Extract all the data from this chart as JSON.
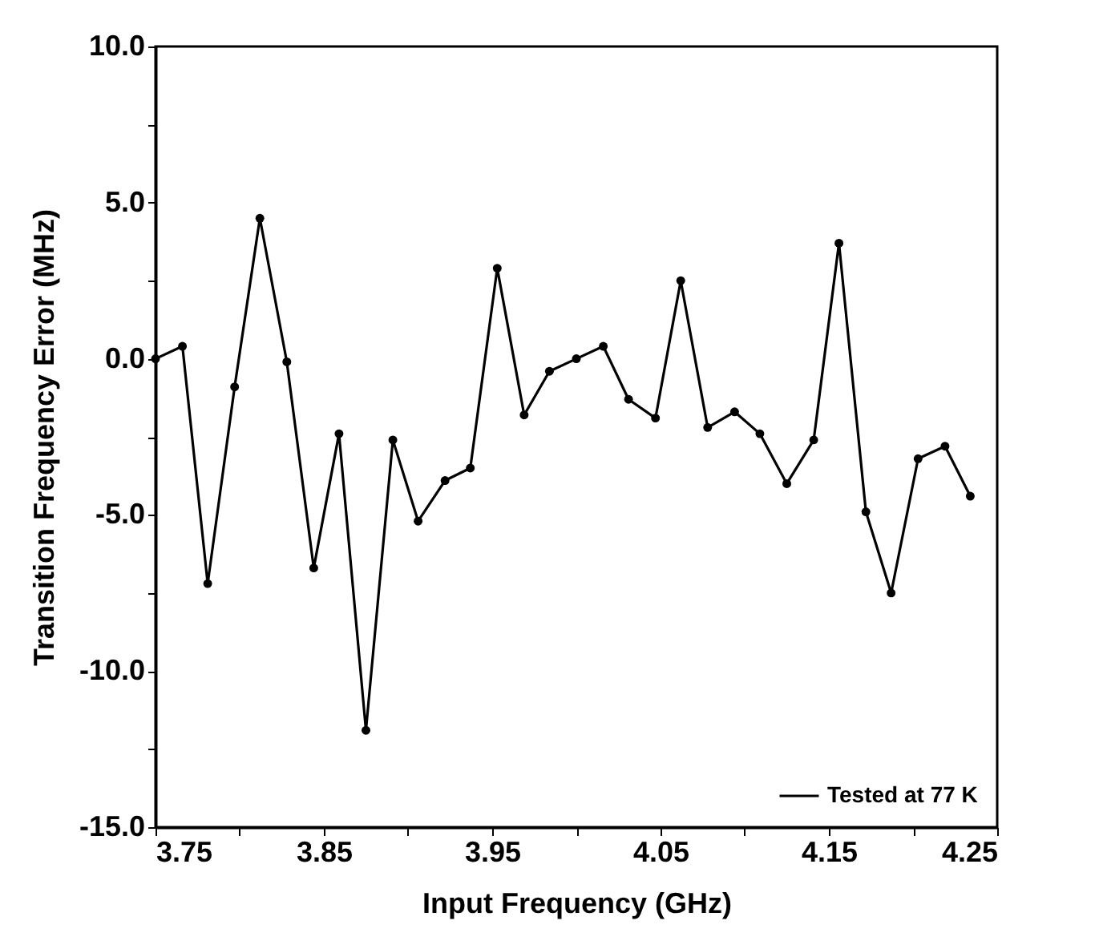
{
  "chart_data": {
    "type": "line",
    "xlabel": "Input Frequency (GHz)",
    "ylabel": "Transition Frequency Error (MHz)",
    "x": [
      3.75,
      3.766,
      3.781,
      3.797,
      3.812,
      3.828,
      3.844,
      3.859,
      3.875,
      3.891,
      3.906,
      3.922,
      3.937,
      3.953,
      3.969,
      3.984,
      4.0,
      4.016,
      4.031,
      4.047,
      4.062,
      4.078,
      4.094,
      4.109,
      4.125,
      4.141,
      4.156,
      4.172,
      4.187,
      4.203,
      4.219,
      4.234
    ],
    "series": [
      {
        "name": "Tested at 77 K",
        "color": "#000000",
        "values": [
          0.0,
          0.4,
          -7.2,
          -0.9,
          4.5,
          -0.1,
          -6.7,
          -2.4,
          -11.9,
          -2.6,
          -5.2,
          -3.9,
          -3.5,
          2.9,
          -1.8,
          -0.4,
          0.0,
          0.4,
          -1.3,
          -1.9,
          2.5,
          -2.2,
          -1.7,
          -2.4,
          -4.0,
          -2.6,
          3.7,
          -4.9,
          -7.5,
          -3.2,
          -2.8,
          -4.4
        ]
      }
    ],
    "xlim": [
      3.75,
      4.25
    ],
    "xticks": [
      {
        "value": 3.75,
        "label": "3.75"
      },
      {
        "value": 3.8,
        "label": null
      },
      {
        "value": 3.85,
        "label": "3.85"
      },
      {
        "value": 3.9,
        "label": null
      },
      {
        "value": 3.95,
        "label": "3.95"
      },
      {
        "value": 4.0,
        "label": null
      },
      {
        "value": 4.05,
        "label": "4.05"
      },
      {
        "value": 4.1,
        "label": null
      },
      {
        "value": 4.15,
        "label": "4.15"
      },
      {
        "value": 4.2,
        "label": null
      },
      {
        "value": 4.25,
        "label": "4.25"
      }
    ],
    "ylim": [
      -15,
      10
    ],
    "yticks": [
      {
        "value": -15,
        "label": "-15.0"
      },
      {
        "value": -12.5,
        "label": null
      },
      {
        "value": -10,
        "label": "-10.0"
      },
      {
        "value": -7.5,
        "label": null
      },
      {
        "value": -5,
        "label": "-5.0"
      },
      {
        "value": -2.5,
        "label": null
      },
      {
        "value": 0,
        "label": "0.0"
      },
      {
        "value": 2.5,
        "label": null
      },
      {
        "value": 5,
        "label": "5.0"
      },
      {
        "value": 7.5,
        "label": null
      },
      {
        "value": 10,
        "label": "10.0"
      }
    ],
    "grid": false,
    "legend": "bottom right",
    "marker": "circle",
    "line_style": "solid"
  }
}
